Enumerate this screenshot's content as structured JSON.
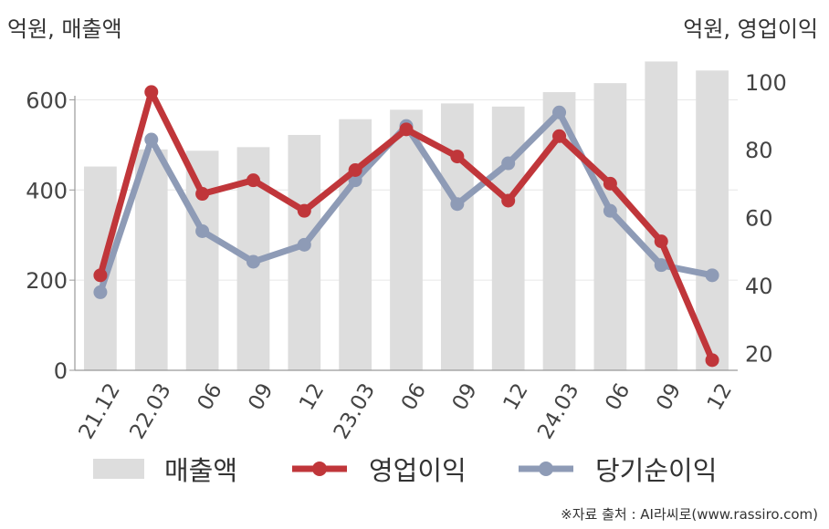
{
  "units": {
    "left": "억원, 매출액",
    "right": "억원, 영업이익"
  },
  "source": "※자료 출처 : AI라씨로(www.rassiro.com)",
  "colors": {
    "bar": "#dddddd",
    "op": "#c0363a",
    "net": "#8e9bb6",
    "axis": "#999999",
    "grid": "#e6e6e6",
    "text": "#444444"
  },
  "chart_data": {
    "type": "bar",
    "categories": [
      "21.12",
      "22.03",
      "06",
      "09",
      "12",
      "23.03",
      "06",
      "09",
      "12",
      "24.03",
      "06",
      "09",
      "12"
    ],
    "yleft": {
      "ticks": [
        0,
        200,
        400,
        600
      ],
      "lim": [
        0,
        700
      ]
    },
    "yright": {
      "ticks": [
        20,
        40,
        60,
        80,
        100
      ],
      "lim": [
        15,
        108
      ]
    },
    "legend": [
      "매출액",
      "영업이익",
      "당기순이익"
    ],
    "series": [
      {
        "name": "매출액",
        "type": "bar",
        "axis": "left",
        "values": [
          452,
          490,
          487,
          495,
          522,
          557,
          578,
          592,
          585,
          617,
          637,
          685,
          665
        ]
      },
      {
        "name": "영업이익",
        "type": "line",
        "axis": "right",
        "values": [
          43,
          97,
          67,
          71,
          62,
          74,
          86,
          78,
          65,
          84,
          70,
          53,
          18
        ]
      },
      {
        "name": "당기순이익",
        "type": "line",
        "axis": "right",
        "values": [
          38,
          83,
          56,
          47,
          52,
          71,
          87,
          64,
          76,
          91,
          62,
          46,
          43
        ]
      }
    ]
  }
}
